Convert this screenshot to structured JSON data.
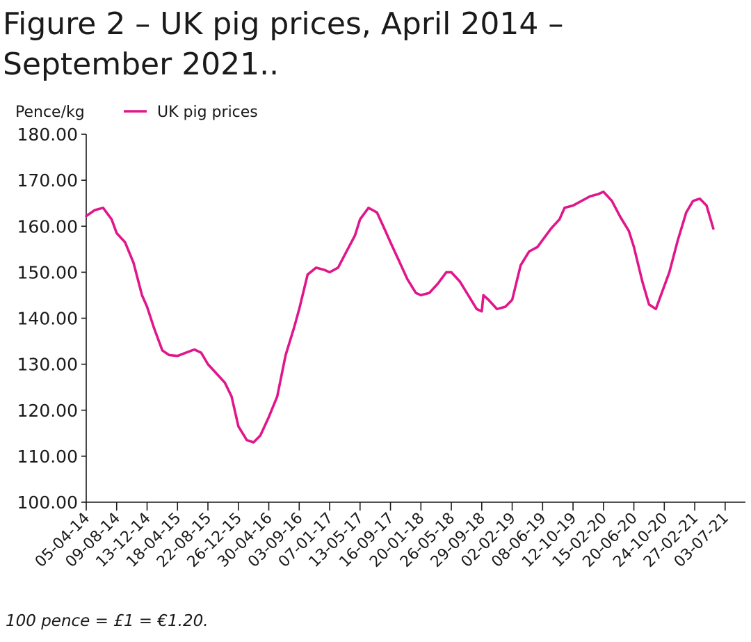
{
  "figure": {
    "title_line1": "Figure 2 – UK pig prices, April 2014 –",
    "title_line2": "September 2021..",
    "footnote": "100 pence = £1 = €1.20."
  },
  "chart_data": {
    "type": "line",
    "ylabel": "Pence/kg",
    "ylim": [
      100,
      180
    ],
    "yticks": [
      "100.00",
      "110.00",
      "120.00",
      "130.00",
      "140.00",
      "150.00",
      "160.00",
      "170.00",
      "180.00"
    ],
    "xlim": [
      "2014-04-05",
      "2021-09-25"
    ],
    "xticks": [
      {
        "date": "2014-04-05",
        "label": "05-04-14"
      },
      {
        "date": "2014-08-09",
        "label": "09-08-14"
      },
      {
        "date": "2014-12-13",
        "label": "13-12-14"
      },
      {
        "date": "2015-04-18",
        "label": "18-04-15"
      },
      {
        "date": "2015-08-22",
        "label": "22-08-15"
      },
      {
        "date": "2015-12-26",
        "label": "26-12-15"
      },
      {
        "date": "2016-04-30",
        "label": "30-04-16"
      },
      {
        "date": "2016-09-03",
        "label": "03-09-16"
      },
      {
        "date": "2017-01-07",
        "label": "07-01-17"
      },
      {
        "date": "2017-05-13",
        "label": "13-05-17"
      },
      {
        "date": "2017-09-16",
        "label": "16-09-17"
      },
      {
        "date": "2018-01-20",
        "label": "20-01-18"
      },
      {
        "date": "2018-05-26",
        "label": "26-05-18"
      },
      {
        "date": "2018-09-29",
        "label": "29-09-18"
      },
      {
        "date": "2019-02-02",
        "label": "02-02-19"
      },
      {
        "date": "2019-06-08",
        "label": "08-06-19"
      },
      {
        "date": "2019-10-12",
        "label": "12-10-19"
      },
      {
        "date": "2020-02-15",
        "label": "15-02-20"
      },
      {
        "date": "2020-06-20",
        "label": "20-06-20"
      },
      {
        "date": "2020-10-24",
        "label": "24-10-20"
      },
      {
        "date": "2021-02-27",
        "label": "27-02-21"
      },
      {
        "date": "2021-07-03",
        "label": "03-07-21"
      }
    ],
    "legend_position": "top-left",
    "grid": false,
    "series": [
      {
        "name": "UK pig prices",
        "color": "#e0168a",
        "points": [
          [
            "2014-04-05",
            162.2
          ],
          [
            "2014-05-10",
            163.5
          ],
          [
            "2014-06-14",
            164.0
          ],
          [
            "2014-07-19",
            161.5
          ],
          [
            "2014-08-09",
            158.5
          ],
          [
            "2014-09-13",
            156.5
          ],
          [
            "2014-10-18",
            152.0
          ],
          [
            "2014-11-22",
            145.0
          ],
          [
            "2014-12-13",
            142.5
          ],
          [
            "2015-01-10",
            138.0
          ],
          [
            "2015-02-14",
            133.0
          ],
          [
            "2015-03-14",
            132.0
          ],
          [
            "2015-04-18",
            131.8
          ],
          [
            "2015-05-23",
            132.5
          ],
          [
            "2015-06-27",
            133.2
          ],
          [
            "2015-07-25",
            132.5
          ],
          [
            "2015-08-22",
            130.0
          ],
          [
            "2015-09-26",
            128.0
          ],
          [
            "2015-10-31",
            126.0
          ],
          [
            "2015-11-28",
            123.0
          ],
          [
            "2015-12-26",
            116.5
          ],
          [
            "2016-01-30",
            113.5
          ],
          [
            "2016-02-27",
            113.0
          ],
          [
            "2016-03-26",
            114.5
          ],
          [
            "2016-04-30",
            118.5
          ],
          [
            "2016-06-04",
            123.0
          ],
          [
            "2016-07-09",
            132.0
          ],
          [
            "2016-08-13",
            138.0
          ],
          [
            "2016-09-03",
            142.0
          ],
          [
            "2016-10-08",
            149.5
          ],
          [
            "2016-11-12",
            151.0
          ],
          [
            "2016-12-17",
            150.5
          ],
          [
            "2017-01-07",
            150.0
          ],
          [
            "2017-02-11",
            151.0
          ],
          [
            "2017-03-18",
            154.5
          ],
          [
            "2017-04-22",
            158.0
          ],
          [
            "2017-05-13",
            161.5
          ],
          [
            "2017-06-17",
            164.0
          ],
          [
            "2017-07-22",
            163.0
          ],
          [
            "2017-08-26",
            159.0
          ],
          [
            "2017-09-16",
            156.5
          ],
          [
            "2017-10-21",
            152.5
          ],
          [
            "2017-11-25",
            148.5
          ],
          [
            "2017-12-30",
            145.5
          ],
          [
            "2018-01-20",
            145.0
          ],
          [
            "2018-02-24",
            145.5
          ],
          [
            "2018-03-31",
            147.5
          ],
          [
            "2018-05-05",
            150.0
          ],
          [
            "2018-05-26",
            150.0
          ],
          [
            "2018-06-30",
            148.0
          ],
          [
            "2018-08-04",
            145.0
          ],
          [
            "2018-09-08",
            142.0
          ],
          [
            "2018-09-29",
            141.5
          ],
          [
            "2018-10-06",
            145.0
          ],
          [
            "2018-10-27",
            144.0
          ],
          [
            "2018-12-01",
            142.0
          ],
          [
            "2019-01-05",
            142.5
          ],
          [
            "2019-02-02",
            144.0
          ],
          [
            "2019-03-09",
            151.5
          ],
          [
            "2019-04-13",
            154.5
          ],
          [
            "2019-05-18",
            155.5
          ],
          [
            "2019-06-08",
            157.0
          ],
          [
            "2019-07-13",
            159.5
          ],
          [
            "2019-08-17",
            161.5
          ],
          [
            "2019-09-07",
            164.0
          ],
          [
            "2019-10-12",
            164.5
          ],
          [
            "2019-11-16",
            165.5
          ],
          [
            "2019-12-21",
            166.5
          ],
          [
            "2020-01-25",
            167.0
          ],
          [
            "2020-02-15",
            167.5
          ],
          [
            "2020-03-21",
            165.5
          ],
          [
            "2020-04-25",
            162.0
          ],
          [
            "2020-05-30",
            159.0
          ],
          [
            "2020-06-20",
            155.5
          ],
          [
            "2020-07-25",
            148.0
          ],
          [
            "2020-08-22",
            143.0
          ],
          [
            "2020-09-19",
            142.0
          ],
          [
            "2020-10-17",
            146.0
          ],
          [
            "2020-11-14",
            150.0
          ],
          [
            "2020-12-19",
            157.0
          ],
          [
            "2021-01-23",
            163.0
          ],
          [
            "2021-02-20",
            165.5
          ],
          [
            "2021-03-20",
            166.0
          ],
          [
            "2021-04-17",
            164.5
          ],
          [
            "2021-05-15",
            159.5
          ]
        ]
      }
    ]
  }
}
